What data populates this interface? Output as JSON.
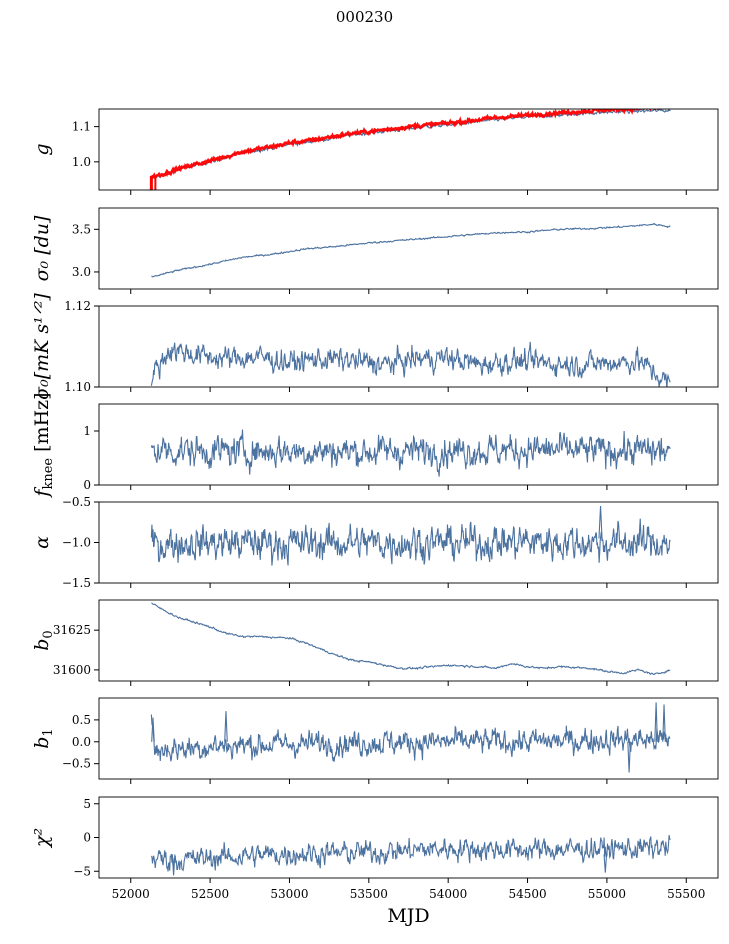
{
  "figure": {
    "title": "000230"
  },
  "colors": {
    "series": "#4c72a0",
    "overlay": "#ff0000",
    "axis": "#000000"
  },
  "chart_data": [
    {
      "id": "g",
      "type": "line",
      "ylabel_main": "g",
      "ylabel_sub": "",
      "ylim": [
        0.92,
        1.15
      ],
      "yticks": [
        1.0,
        1.1
      ],
      "ytick_labels": [
        "1.0",
        "1.1"
      ],
      "xlim": [
        51800,
        55700
      ],
      "series": [
        {
          "name": "g",
          "x": [
            52130,
            52200,
            52300,
            52400,
            52500,
            52600,
            52700,
            52800,
            52900,
            53000,
            53100,
            53200,
            53300,
            53400,
            53500,
            53600,
            53700,
            53800,
            53900,
            54000,
            54100,
            54200,
            54300,
            54400,
            54500,
            54600,
            54700,
            54800,
            54900,
            55000,
            55100,
            55200,
            55300,
            55400
          ],
          "values": [
            0.955,
            0.962,
            0.978,
            0.99,
            1.0,
            1.012,
            1.025,
            1.033,
            1.04,
            1.05,
            1.055,
            1.062,
            1.07,
            1.077,
            1.082,
            1.087,
            1.092,
            1.097,
            1.102,
            1.105,
            1.11,
            1.115,
            1.12,
            1.124,
            1.127,
            1.131,
            1.133,
            1.136,
            1.139,
            1.141,
            1.143,
            1.144,
            1.145,
            1.146
          ]
        },
        {
          "name": "g_ref",
          "color": "overlay",
          "x": [
            52130,
            52200,
            52300,
            52400,
            52500,
            52600,
            52700,
            52800,
            52900,
            53000,
            53100,
            53200,
            53300,
            53400,
            53500,
            53600,
            53700,
            53800,
            53900,
            54000,
            54100,
            54200,
            54300,
            54400,
            54500,
            54600,
            54700,
            54800,
            54900,
            55000,
            55100,
            55200,
            55300,
            55400
          ],
          "values": [
            0.958,
            0.965,
            0.98,
            0.992,
            1.003,
            1.015,
            1.028,
            1.036,
            1.044,
            1.054,
            1.059,
            1.066,
            1.074,
            1.081,
            1.086,
            1.091,
            1.097,
            1.102,
            1.106,
            1.11,
            1.115,
            1.12,
            1.125,
            1.129,
            1.132,
            1.136,
            1.139,
            1.142,
            1.145,
            1.148,
            1.15,
            1.152,
            1.153,
            1.154
          ]
        }
      ],
      "noise": 0.002,
      "start_spike": {
        "x": 52130,
        "low": 0.92,
        "high": 0.96
      }
    },
    {
      "id": "sigma0_du",
      "type": "line",
      "ylabel_main": "σ₀ [du]",
      "ylabel_sub": "",
      "ylim": [
        2.8,
        3.75
      ],
      "yticks": [
        3.0,
        3.5
      ],
      "ytick_labels": [
        "3.0",
        "3.5"
      ],
      "xlim": [
        51800,
        55700
      ],
      "series": [
        {
          "name": "sigma0",
          "x": [
            52130,
            52300,
            52500,
            52700,
            52900,
            53100,
            53300,
            53500,
            53700,
            53900,
            54100,
            54300,
            54500,
            54700,
            54900,
            55100,
            55300,
            55400
          ],
          "values": [
            2.94,
            3.02,
            3.09,
            3.17,
            3.21,
            3.27,
            3.3,
            3.34,
            3.37,
            3.4,
            3.43,
            3.46,
            3.47,
            3.5,
            3.51,
            3.53,
            3.56,
            3.53
          ]
        }
      ],
      "noise": 0.004
    },
    {
      "id": "sigma0_mk",
      "type": "line",
      "ylabel_main": "σ₀[mK s¹ᐟ²]",
      "ylabel_sub": "",
      "ylim": [
        1.1,
        1.12
      ],
      "yticks": [
        1.1,
        1.12
      ],
      "ytick_labels": [
        "1.10",
        "1.12"
      ],
      "xlim": [
        51800,
        55700
      ],
      "series": [
        {
          "name": "sigma0_mk",
          "x": [
            52130,
            52250,
            52400,
            52600,
            52800,
            53000,
            53200,
            53400,
            53600,
            53800,
            54000,
            54200,
            54400,
            54600,
            54800,
            55000,
            55200,
            55400
          ],
          "values": [
            1.1025,
            1.1095,
            1.108,
            1.107,
            1.1075,
            1.106,
            1.107,
            1.1065,
            1.1055,
            1.107,
            1.1072,
            1.1055,
            1.1065,
            1.106,
            1.1055,
            1.106,
            1.1065,
            1.1005
          ]
        }
      ],
      "noise": 0.0012
    },
    {
      "id": "fknee",
      "type": "line",
      "ylabel_main": "f",
      "ylabel_sub": "knee",
      "ylabel_tail": " [mHz]",
      "ylim": [
        0,
        1.5
      ],
      "yticks": [
        0,
        1
      ],
      "ytick_labels": [
        "0",
        "1"
      ],
      "xlim": [
        51800,
        55700
      ],
      "series": [
        {
          "name": "fknee",
          "x": [
            52130,
            52500,
            53000,
            53500,
            54000,
            54500,
            55000,
            55400
          ],
          "values": [
            0.65,
            0.62,
            0.63,
            0.62,
            0.64,
            0.65,
            0.64,
            0.63
          ]
        }
      ],
      "noise": 0.12
    },
    {
      "id": "alpha",
      "type": "line",
      "ylabel_main": "α",
      "ylabel_sub": "",
      "ylim": [
        -1.5,
        -0.5
      ],
      "yticks": [
        -1.5,
        -1.0,
        -0.5
      ],
      "ytick_labels": [
        "−1.5",
        "−1.0",
        "−0.5"
      ],
      "xlim": [
        51800,
        55700
      ],
      "series": [
        {
          "name": "alpha",
          "x": [
            52130,
            52500,
            53000,
            53500,
            54000,
            54500,
            55000,
            55400
          ],
          "values": [
            -1.02,
            -1.0,
            -1.01,
            -1.0,
            -1.0,
            -0.99,
            -1.0,
            -1.0
          ]
        }
      ],
      "noise": 0.09
    },
    {
      "id": "b0",
      "type": "line",
      "ylabel_main": "b",
      "ylabel_sub": "0",
      "ylim": [
        31593,
        31644
      ],
      "yticks": [
        31600,
        31625
      ],
      "ytick_labels": [
        "31600",
        "31625"
      ],
      "xlim": [
        51800,
        55700
      ],
      "series": [
        {
          "name": "b0",
          "x": [
            52130,
            52200,
            52300,
            52400,
            52500,
            52600,
            52700,
            52800,
            53000,
            53100,
            53200,
            53300,
            53400,
            53500,
            53600,
            53700,
            53800,
            53900,
            54000,
            54200,
            54300,
            54400,
            54500,
            54600,
            54700,
            54900,
            55000,
            55100,
            55200,
            55300,
            55400
          ],
          "values": [
            31642,
            31638,
            31633,
            31630,
            31627,
            31623,
            31621,
            31621,
            31620,
            31617,
            31613,
            31609,
            31606,
            31605,
            31603,
            31601,
            31601,
            31602,
            31603,
            31602,
            31601,
            31604,
            31602,
            31601,
            31602,
            31601,
            31599,
            31598,
            31600,
            31597,
            31600
          ]
        }
      ],
      "noise": 0.25
    },
    {
      "id": "b1",
      "type": "line",
      "ylabel_main": "b",
      "ylabel_sub": "1",
      "ylim": [
        -0.85,
        1.0
      ],
      "yticks": [
        -0.5,
        0.0,
        0.5
      ],
      "ytick_labels": [
        "−0.5",
        "0.0",
        "0.5"
      ],
      "xlim": [
        51800,
        55700
      ],
      "series": [
        {
          "name": "b1",
          "x": [
            52130,
            52150,
            52300,
            52500,
            53000,
            53500,
            54000,
            54500,
            55000,
            55400
          ],
          "values": [
            0.55,
            -0.2,
            -0.15,
            -0.1,
            -0.05,
            -0.02,
            0.0,
            0.0,
            0.05,
            0.05
          ]
        }
      ],
      "noise": 0.12
    },
    {
      "id": "chi2",
      "type": "line",
      "ylabel_main": "χ²",
      "ylabel_sub": "",
      "ylim": [
        -6,
        6
      ],
      "yticks": [
        -5,
        0,
        5
      ],
      "ytick_labels": [
        "−5",
        "0",
        "5"
      ],
      "xlim": [
        51800,
        55700
      ],
      "xlabel": "MJD",
      "xticks": [
        52000,
        52500,
        53000,
        53500,
        54000,
        54500,
        55000,
        55500
      ],
      "xtick_labels": [
        "52000",
        "52500",
        "53000",
        "53500",
        "54000",
        "54500",
        "55000",
        "55500"
      ],
      "series": [
        {
          "name": "chi2",
          "x": [
            52130,
            52300,
            52500,
            53000,
            53500,
            54000,
            54500,
            55000,
            55400
          ],
          "values": [
            -3.0,
            -3.4,
            -3.0,
            -2.4,
            -2.2,
            -1.6,
            -1.8,
            -1.7,
            -1.5
          ]
        }
      ],
      "noise": 0.7
    }
  ]
}
